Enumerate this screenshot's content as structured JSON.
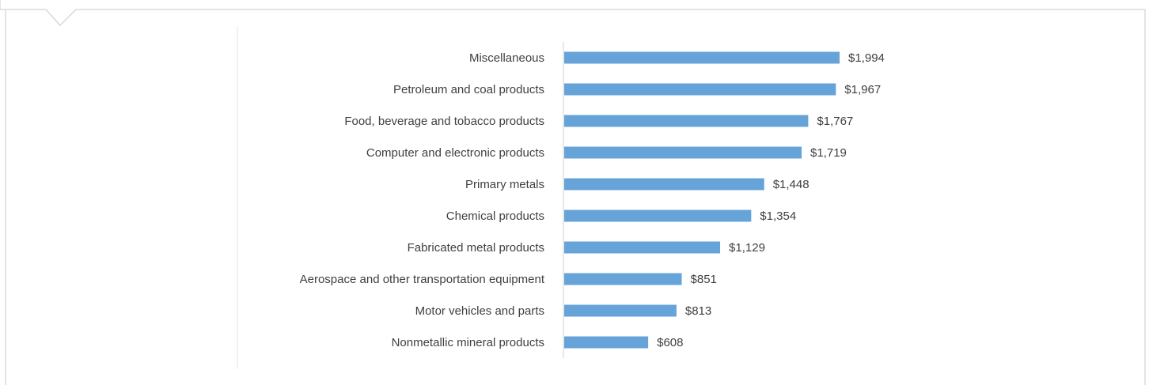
{
  "colors": {
    "bar": "#66a3d9",
    "frame": "#c8c8c8",
    "axis": "#d0d0d0",
    "text": "#404040"
  },
  "chart_data": {
    "type": "bar",
    "orientation": "horizontal",
    "title": "",
    "xlabel": "",
    "ylabel": "",
    "grid": false,
    "legend": "none",
    "xlim": [
      0,
      2000
    ],
    "value_format": "currency-dollars",
    "categories": [
      "Miscellaneous",
      "Petroleum and coal products",
      "Food, beverage and tobacco products",
      "Computer and electronic products",
      "Primary metals",
      "Chemical products",
      "Fabricated metal products",
      "Aerospace and other transportation equipment",
      "Motor vehicles and parts",
      "Nonmetallic mineral products"
    ],
    "values": [
      1994,
      1967,
      1767,
      1719,
      1448,
      1354,
      1129,
      851,
      813,
      608
    ],
    "value_labels": [
      "$1,994",
      "$1,967",
      "$1,767",
      "$1,719",
      "$1,448",
      "$1,354",
      "$1,129",
      "$851",
      "$813",
      "$608"
    ]
  }
}
